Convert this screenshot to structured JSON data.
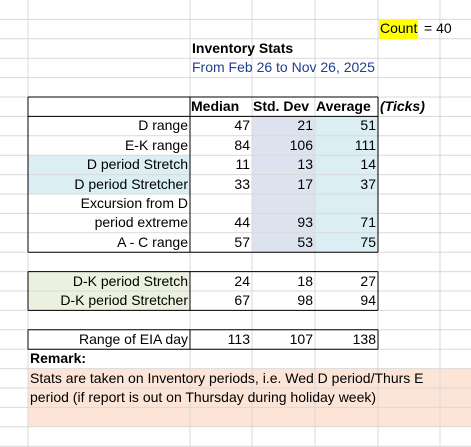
{
  "header": {
    "count": {
      "label": "Count",
      "value": "= 40"
    },
    "title": "Inventory Stats",
    "subtitle": "From Feb 26 to Nov 26, 2025"
  },
  "table": {
    "columns": [
      "Median",
      "Std. Dev",
      "Average"
    ],
    "unit": "(Ticks)",
    "groups": [
      [
        {
          "label": "D range",
          "values": [
            47,
            21,
            51
          ]
        },
        {
          "label": "E-K range",
          "values": [
            84,
            106,
            111
          ]
        },
        {
          "label": "D period Stretch",
          "values": [
            11,
            13,
            14
          ]
        },
        {
          "label": "D period Stretcher",
          "values": [
            33,
            17,
            37
          ]
        },
        {
          "label": [
            "Excursion from D",
            "period extreme"
          ],
          "values": [
            44,
            93,
            71
          ]
        },
        {
          "label": "A - C range",
          "values": [
            57,
            53,
            75
          ]
        }
      ],
      [
        {
          "label": "D-K period Stretch",
          "values": [
            24,
            18,
            27
          ]
        },
        {
          "label": "D-K period Stretcher",
          "values": [
            67,
            98,
            94
          ]
        }
      ],
      [
        {
          "label": "Range of EIA day",
          "values": [
            113,
            107,
            138
          ]
        }
      ]
    ]
  },
  "remark": {
    "title": "Remark:",
    "lines": [
      "Stats are taken on Inventory periods, i.e. Wed D period/Thurs E",
      "period (if report is out on Thursday during holiday week)"
    ]
  }
}
